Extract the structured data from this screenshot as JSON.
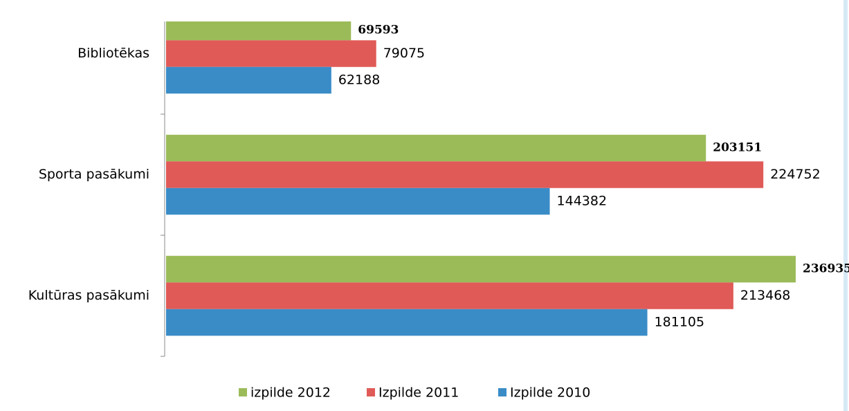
{
  "chart_data": {
    "type": "bar",
    "orientation": "horizontal",
    "categories": [
      "Bibliotēkas",
      "Sporta pasākumi",
      "Kultūras pasākumi"
    ],
    "series": [
      {
        "name": "izpilde 2012",
        "color": "#9bbb59",
        "values": [
          69593,
          203151,
          236935
        ]
      },
      {
        "name": "Izpilde 2011",
        "color": "#e05a57",
        "values": [
          79075,
          224752,
          213468
        ]
      },
      {
        "name": "Izpilde 2010",
        "color": "#3a8cc7",
        "values": [
          62188,
          144382,
          181105
        ]
      }
    ],
    "legend": "bottom"
  }
}
